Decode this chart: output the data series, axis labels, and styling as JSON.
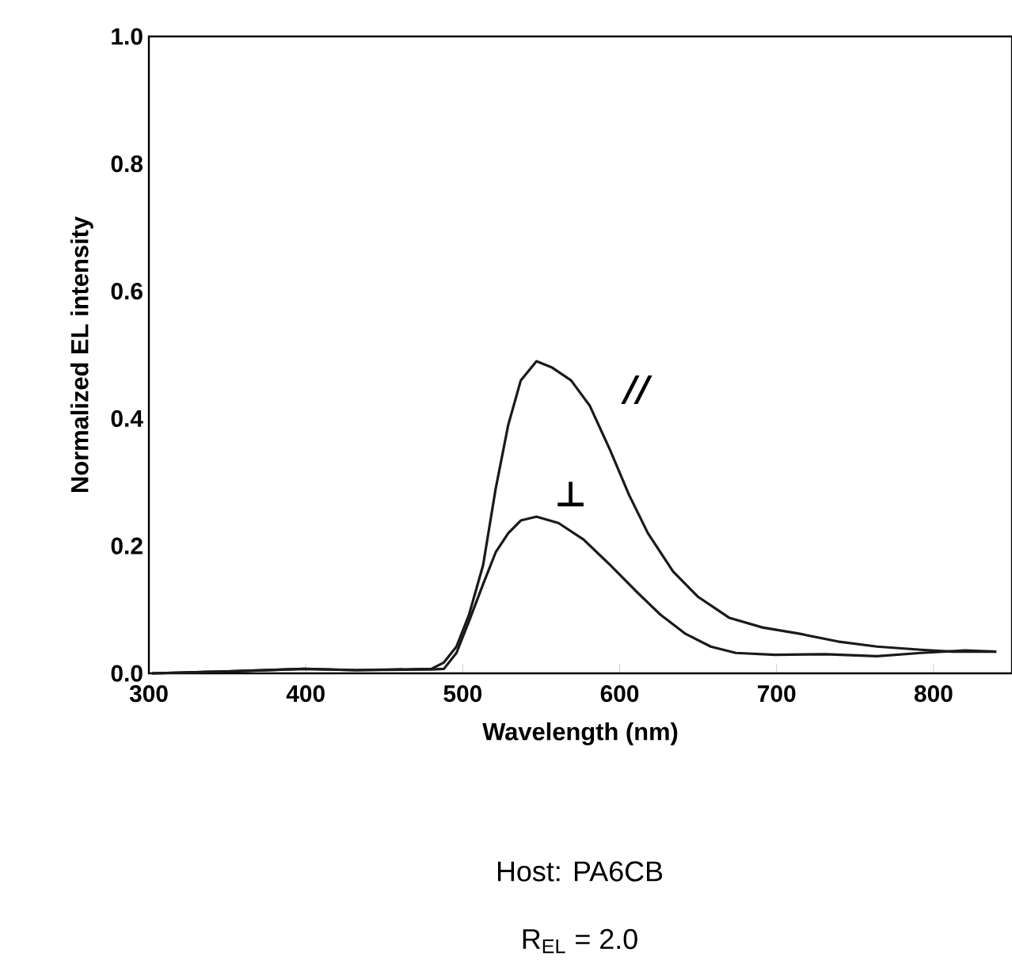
{
  "chart_data": {
    "type": "line",
    "xlabel": "Wavelength (nm)",
    "ylabel": "Normalized EL intensity",
    "xlim": [
      300,
      850
    ],
    "xticks": [
      300,
      400,
      500,
      600,
      700,
      800
    ],
    "ylim": [
      0,
      1.0
    ],
    "yticks": [
      {
        "value": 0,
        "label": "0.0"
      },
      0.2,
      0.4,
      0.6,
      0.8,
      {
        "value": 1.0,
        "label": "1.0"
      }
    ],
    "grid": false,
    "marker": "none",
    "line_style": "solid",
    "annotations": [
      "Host: PA6CB",
      "R$_{EL}$ = 2.0"
    ],
    "series": [
      {
        "name": "//",
        "color": "#1a1a1a",
        "x": [
          302,
          350,
          399,
          432,
          480,
          488,
          496,
          504,
          513,
          521,
          529,
          537,
          547,
          557,
          569,
          581,
          594,
          606,
          618,
          634,
          650,
          670,
          691,
          715,
          739,
          764,
          792,
          812,
          840
        ],
        "values": [
          0,
          0.003,
          0.007,
          0.005,
          0.007,
          0.017,
          0.042,
          0.092,
          0.17,
          0.29,
          0.39,
          0.46,
          0.49,
          0.48,
          0.46,
          0.42,
          0.35,
          0.28,
          0.22,
          0.16,
          0.12,
          0.087,
          0.072,
          0.062,
          0.05,
          0.042,
          0.037,
          0.034,
          0.034
        ]
      },
      {
        "name": "⊥",
        "color": "#1a1a1a",
        "x": [
          302,
          350,
          399,
          432,
          480,
          488,
          496,
          504,
          513,
          521,
          529,
          537,
          547,
          561,
          577,
          594,
          610,
          626,
          642,
          658,
          674,
          699,
          731,
          764,
          792,
          820,
          840
        ],
        "values": [
          0,
          0.003,
          0.007,
          0.005,
          0.006,
          0.007,
          0.032,
          0.082,
          0.14,
          0.19,
          0.22,
          0.24,
          0.246,
          0.236,
          0.21,
          0.17,
          0.13,
          0.092,
          0.062,
          0.042,
          0.032,
          0.029,
          0.03,
          0.027,
          0.032,
          0.036,
          0.034
        ]
      }
    ]
  }
}
